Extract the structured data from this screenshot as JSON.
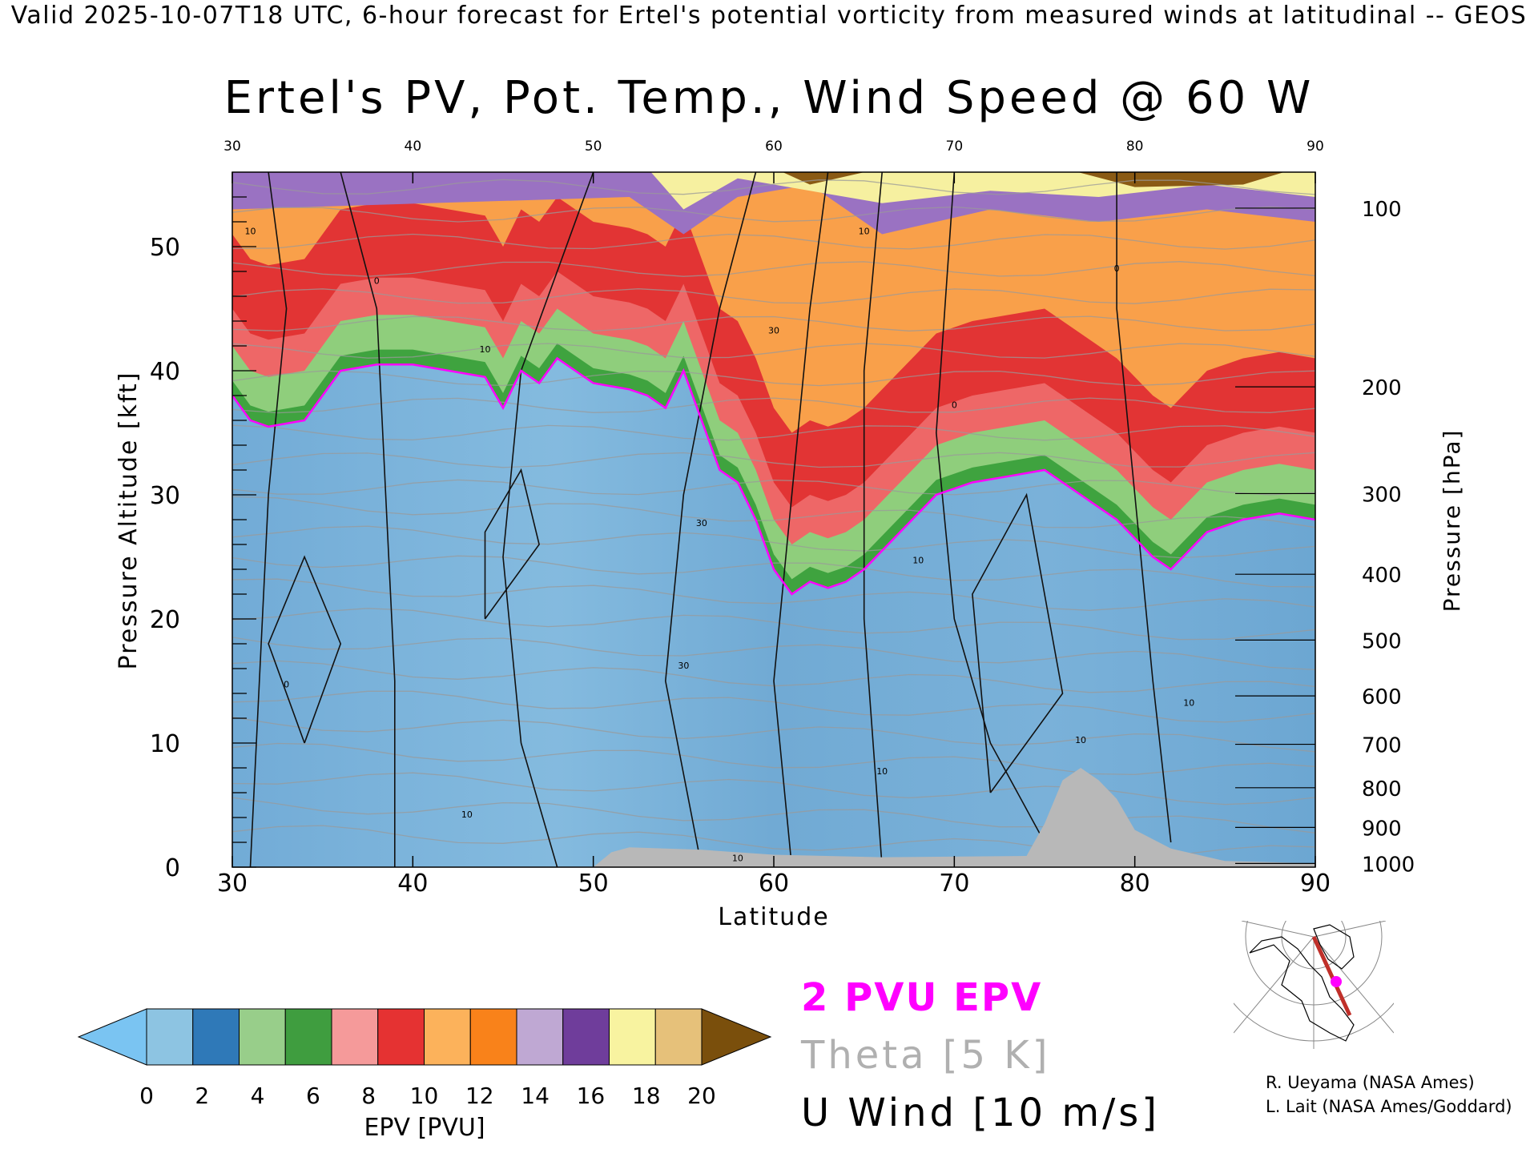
{
  "header": {
    "valid_line": "Valid 2025-10-07T18 UTC, 6-hour forecast for Ertel's potential vorticity from measured winds at latitudinal -- GEOS"
  },
  "chart_data": {
    "type": "heatmap",
    "title": "Ertel's PV, Pot. Temp., Wind Speed @ 60 W",
    "xlabel": "Latitude",
    "ylabel_left": "Pressure Altitude [kft]",
    "ylabel_right": "Pressure [hPa]",
    "xlim": [
      30,
      90
    ],
    "ylim": [
      0,
      56
    ],
    "x_ticks": [
      30,
      40,
      50,
      60,
      70,
      80,
      90
    ],
    "x_tick_labels": [
      "30",
      "40",
      "50",
      "60",
      "70",
      "80",
      "90"
    ],
    "y_ticks": [
      0,
      10,
      20,
      30,
      40,
      50
    ],
    "y_tick_labels": [
      "0",
      "10",
      "20",
      "30",
      "40",
      "50"
    ],
    "pressure_ticks": [
      {
        "hpa": 100,
        "kft": 53.1,
        "label": "100"
      },
      {
        "hpa": 200,
        "kft": 38.7,
        "label": "200"
      },
      {
        "hpa": 300,
        "kft": 30.1,
        "label": "300"
      },
      {
        "hpa": 400,
        "kft": 23.6,
        "label": "400"
      },
      {
        "hpa": 500,
        "kft": 18.3,
        "label": "500"
      },
      {
        "hpa": 600,
        "kft": 13.8,
        "label": "600"
      },
      {
        "hpa": 700,
        "kft": 9.9,
        "label": "700"
      },
      {
        "hpa": 800,
        "kft": 6.4,
        "label": "800"
      },
      {
        "hpa": 900,
        "kft": 3.2,
        "label": "900"
      },
      {
        "hpa": 1000,
        "kft": 0.3,
        "label": "1000"
      }
    ],
    "tropopause_2pvu": [
      {
        "lat": 30,
        "kft": 38
      },
      {
        "lat": 31,
        "kft": 36
      },
      {
        "lat": 32,
        "kft": 35.5
      },
      {
        "lat": 34,
        "kft": 36
      },
      {
        "lat": 36,
        "kft": 40
      },
      {
        "lat": 38,
        "kft": 40.5
      },
      {
        "lat": 40,
        "kft": 40.5
      },
      {
        "lat": 42,
        "kft": 40
      },
      {
        "lat": 44,
        "kft": 39.5
      },
      {
        "lat": 45,
        "kft": 37
      },
      {
        "lat": 46,
        "kft": 40
      },
      {
        "lat": 47,
        "kft": 39
      },
      {
        "lat": 48,
        "kft": 41
      },
      {
        "lat": 50,
        "kft": 39
      },
      {
        "lat": 52,
        "kft": 38.5
      },
      {
        "lat": 53,
        "kft": 38
      },
      {
        "lat": 54,
        "kft": 37
      },
      {
        "lat": 55,
        "kft": 40
      },
      {
        "lat": 56,
        "kft": 36
      },
      {
        "lat": 57,
        "kft": 32
      },
      {
        "lat": 58,
        "kft": 31
      },
      {
        "lat": 59,
        "kft": 28
      },
      {
        "lat": 60,
        "kft": 24
      },
      {
        "lat": 61,
        "kft": 22
      },
      {
        "lat": 62,
        "kft": 23
      },
      {
        "lat": 63,
        "kft": 22.5
      },
      {
        "lat": 64,
        "kft": 23
      },
      {
        "lat": 65,
        "kft": 24
      },
      {
        "lat": 67,
        "kft": 27
      },
      {
        "lat": 69,
        "kft": 30
      },
      {
        "lat": 71,
        "kft": 31
      },
      {
        "lat": 73,
        "kft": 31.5
      },
      {
        "lat": 75,
        "kft": 32
      },
      {
        "lat": 77,
        "kft": 30
      },
      {
        "lat": 79,
        "kft": 28
      },
      {
        "lat": 81,
        "kft": 25
      },
      {
        "lat": 82,
        "kft": 24
      },
      {
        "lat": 84,
        "kft": 27
      },
      {
        "lat": 86,
        "kft": 28
      },
      {
        "lat": 88,
        "kft": 28.5
      },
      {
        "lat": 90,
        "kft": 28
      }
    ],
    "terrain": [
      {
        "lat": 50,
        "kft": 0
      },
      {
        "lat": 51,
        "kft": 1.2
      },
      {
        "lat": 52,
        "kft": 1.6
      },
      {
        "lat": 56,
        "kft": 1.4
      },
      {
        "lat": 60,
        "kft": 1.0
      },
      {
        "lat": 66,
        "kft": 0.8
      },
      {
        "lat": 74,
        "kft": 0.9
      },
      {
        "lat": 75,
        "kft": 3.5
      },
      {
        "lat": 76,
        "kft": 7
      },
      {
        "lat": 77,
        "kft": 8
      },
      {
        "lat": 78,
        "kft": 7
      },
      {
        "lat": 79,
        "kft": 5.5
      },
      {
        "lat": 80,
        "kft": 3
      },
      {
        "lat": 82,
        "kft": 1.5
      },
      {
        "lat": 85,
        "kft": 0.5
      },
      {
        "lat": 90,
        "kft": 0.3
      }
    ],
    "contour_labels": [
      {
        "text": "0",
        "lat": 38,
        "kft": 47
      },
      {
        "text": "10",
        "lat": 31,
        "kft": 51
      },
      {
        "text": "10",
        "lat": 44,
        "kft": 41.5
      },
      {
        "text": "30",
        "lat": 60,
        "kft": 43
      },
      {
        "text": "0",
        "lat": 70,
        "kft": 37
      },
      {
        "text": "10",
        "lat": 65,
        "kft": 51
      },
      {
        "text": "0",
        "lat": 79,
        "kft": 48
      },
      {
        "text": "30",
        "lat": 56,
        "kft": 27.5
      },
      {
        "text": "10",
        "lat": 68,
        "kft": 24.5
      },
      {
        "text": "30",
        "lat": 55,
        "kft": 16
      },
      {
        "text": "10",
        "lat": 43,
        "kft": 4
      },
      {
        "text": "10",
        "lat": 66,
        "kft": 7.5
      },
      {
        "text": "10",
        "lat": 58,
        "kft": 0.5
      },
      {
        "text": "10",
        "lat": 83,
        "kft": 13
      },
      {
        "text": "10",
        "lat": 77,
        "kft": 10
      },
      {
        "text": "0",
        "lat": 33,
        "kft": 14.5
      }
    ],
    "colorbar": {
      "label": "EPV [PVU]",
      "tick_labels": [
        "0",
        "2",
        "4",
        "6",
        "8",
        "10",
        "12",
        "14",
        "16",
        "18",
        "20"
      ],
      "under_color": "#7ac4f2",
      "over_color": "#7a4f0c",
      "colors": [
        "#8dc4e2",
        "#2f79b8",
        "#98ce8a",
        "#3f9d3f",
        "#f59a9a",
        "#e53232",
        "#fcb25b",
        "#f9821a",
        "#bfa8d3",
        "#6f3d9b",
        "#f8f3a0",
        "#e6c17a"
      ]
    },
    "legend": {
      "pv": "2 PVU EPV",
      "theta": "Theta [5 K]",
      "uwind": "U Wind [10 m/s]",
      "pv_color": "#ff00ff",
      "theta_color": "#b0b0b0",
      "uwind_color": "#000000"
    },
    "grid": false
  },
  "credits": {
    "line1": "R. Ueyama (NASA Ames)",
    "line2": "L. Lait (NASA Ames/Goddard)"
  },
  "map_icon": "north-polar-map-icon"
}
